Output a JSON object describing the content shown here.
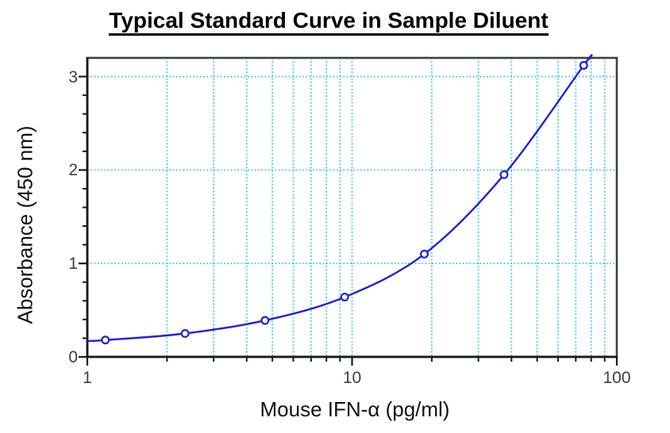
{
  "chart_data": {
    "type": "line",
    "title": "Typical Standard Curve in Sample Diluent",
    "xlabel": "Mouse IFN-α (pg/ml)",
    "ylabel": "Absorbance (450 nm)",
    "x_scale": "log",
    "xlim": [
      1,
      100
    ],
    "ylim": [
      0,
      3.2
    ],
    "x_ticks_major": [
      1,
      10,
      100
    ],
    "x_tick_labels": [
      "1",
      "10",
      "100"
    ],
    "x_ticks_minor": [
      2,
      3,
      4,
      5,
      6,
      7,
      8,
      9,
      20,
      30,
      40,
      50,
      60,
      70,
      80,
      90
    ],
    "y_ticks_major": [
      0,
      1,
      2,
      3
    ],
    "y_tick_labels": [
      "0",
      "1",
      "2",
      "3"
    ],
    "y_minor_step": 0.2,
    "grid_x": [
      2,
      3,
      4,
      5,
      6,
      7,
      8,
      9,
      10,
      20,
      30,
      40,
      50,
      60,
      70,
      80,
      90
    ],
    "grid_y": [
      1,
      2,
      3
    ],
    "legend": "none",
    "series": [
      {
        "name": "standard-curve",
        "x": [
          1.17,
          2.34,
          4.69,
          9.38,
          18.75,
          37.5,
          75
        ],
        "y": [
          0.18,
          0.25,
          0.39,
          0.64,
          1.1,
          1.95,
          3.12
        ]
      }
    ],
    "curve_extension": {
      "start": [
        1.0,
        0.17
      ],
      "end": [
        79,
        3.19
      ]
    },
    "colors": {
      "line": "#2121d6",
      "marker_stroke": "#2121d6",
      "marker_fill": "#ffffff",
      "grid": "#35c6ef",
      "axis": "#1a1a1a",
      "border": "#3f3f3f",
      "tick_label": "#3a3f47",
      "text": "#111111",
      "background": "#ffffff"
    }
  }
}
